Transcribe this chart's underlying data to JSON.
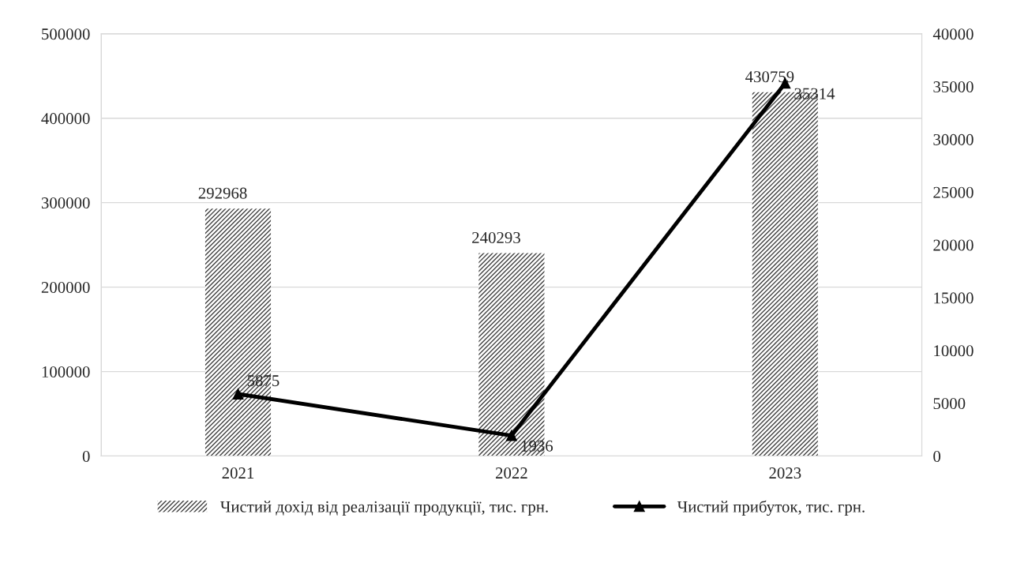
{
  "chart_data": {
    "type": "bar",
    "categories": [
      "2021",
      "2022",
      "2023"
    ],
    "series": [
      {
        "name": "Чистий дохід від реалізації продукції, тис. грн.",
        "color": "#404040",
        "values": [
          292968,
          240293,
          430759
        ]
      },
      {
        "name": "Чистий прибуток, тис. грн.",
        "type": "line",
        "axis": "y2",
        "color": "#000000",
        "marker": "triangle",
        "values": [
          5875,
          1936,
          35314
        ]
      }
    ],
    "ylim": [
      0,
      500000
    ],
    "yticks": [
      0,
      100000,
      200000,
      300000,
      400000,
      500000
    ],
    "y2lim": [
      0,
      40000
    ],
    "y2ticks": [
      0,
      5000,
      10000,
      15000,
      20000,
      25000,
      30000,
      35000,
      40000
    ],
    "grid": "y",
    "legend": "bottom",
    "data_labels": true
  }
}
